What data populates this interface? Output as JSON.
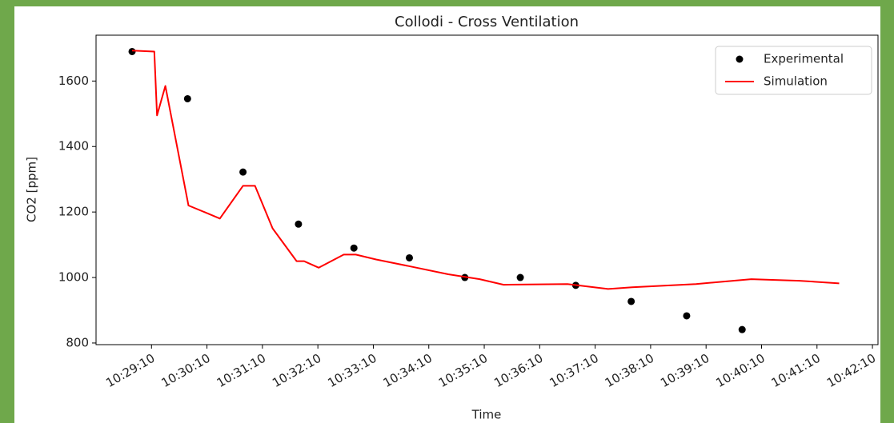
{
  "chart_data": {
    "type": "line",
    "title": "Collodi - Cross Ventilation",
    "x_label": "Time",
    "y_label": "CO2 [ppm]",
    "xlim": [
      "10:28:10",
      "10:42:16"
    ],
    "xticks": [
      "10:29:10",
      "10:30:10",
      "10:31:10",
      "10:32:10",
      "10:33:10",
      "10:34:10",
      "10:35:10",
      "10:36:10",
      "10:37:10",
      "10:38:10",
      "10:39:10",
      "10:40:10",
      "10:41:10",
      "10:42:10"
    ],
    "ylim": [
      795,
      1740
    ],
    "yticks": [
      800,
      1000,
      1200,
      1400,
      1600
    ],
    "legend": "upper right",
    "grid": false,
    "series": [
      {
        "name": "Experimental",
        "color": "#000000",
        "style": "markers",
        "x": [
          "10:28:49",
          "10:29:49",
          "10:30:49",
          "10:31:49",
          "10:32:49",
          "10:33:49",
          "10:34:49",
          "10:35:49",
          "10:36:49",
          "10:37:49",
          "10:38:49",
          "10:39:49"
        ],
        "values": [
          1690,
          1546,
          1322,
          1163,
          1090,
          1060,
          1000,
          1000,
          976,
          927,
          883,
          841
        ]
      },
      {
        "name": "Simulation",
        "color": "#ff0000",
        "style": "line",
        "x": [
          "10:28:49",
          "10:29:13",
          "10:29:16",
          "10:29:25",
          "10:29:50",
          "10:30:07",
          "10:30:24",
          "10:30:49",
          "10:31:02",
          "10:31:21",
          "10:31:47",
          "10:31:55",
          "10:32:11",
          "10:32:38",
          "10:32:51",
          "10:33:13",
          "10:33:48",
          "10:34:31",
          "10:35:05",
          "10:35:31",
          "10:36:40",
          "10:37:24",
          "10:37:50",
          "10:38:59",
          "10:39:59",
          "10:40:51",
          "10:41:34"
        ],
        "values": [
          1693,
          1690,
          1495,
          1585,
          1220,
          1200,
          1180,
          1280,
          1280,
          1150,
          1050,
          1050,
          1030,
          1070,
          1070,
          1055,
          1035,
          1010,
          995,
          978,
          980,
          965,
          970,
          980,
          995,
          990,
          982
        ]
      }
    ]
  }
}
